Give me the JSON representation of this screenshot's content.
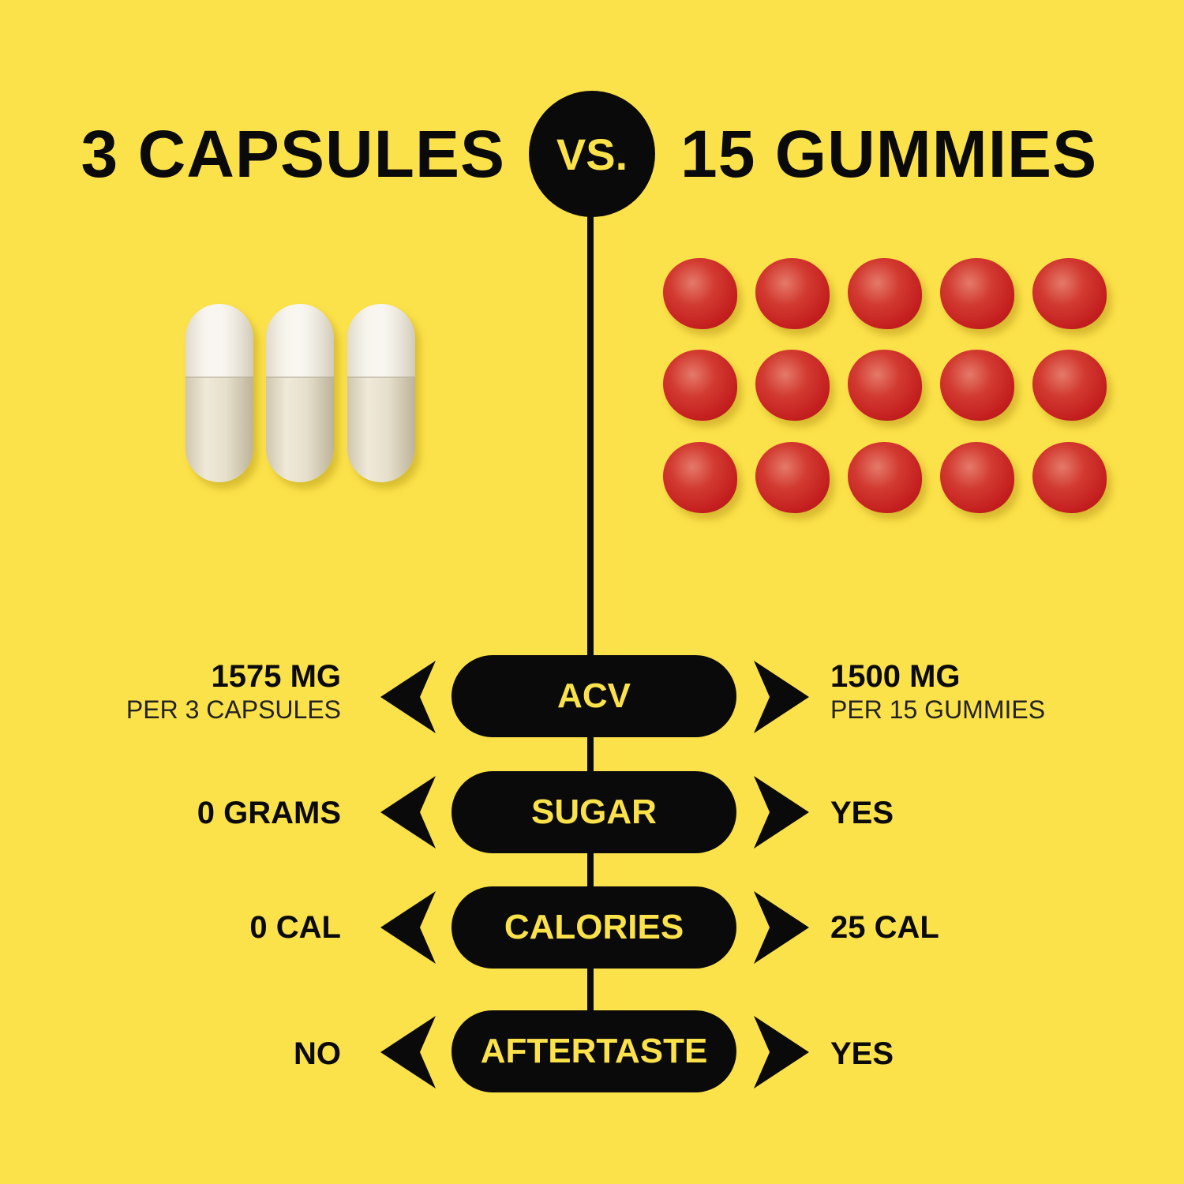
{
  "header": {
    "left": "3 CAPSULES",
    "vs": "VS.",
    "right": "15 GUMMIES"
  },
  "colors": {
    "background": "#fce24a",
    "dark": "#0a0a0a",
    "gummy": "#c41f1f"
  },
  "left_product": {
    "count": 3,
    "item": "capsule"
  },
  "right_product": {
    "count": 15,
    "item": "gummy"
  },
  "rows": [
    {
      "label": "ACV",
      "left": "1575 MG",
      "left_sub": "PER 3 CAPSULES",
      "right": "1500 MG",
      "right_sub": "PER 15 GUMMIES"
    },
    {
      "label": "SUGAR",
      "left": "0 GRAMS",
      "right": "YES"
    },
    {
      "label": "CALORIES",
      "left": "0 CAL",
      "right": "25 CAL"
    },
    {
      "label": "AFTERTASTE",
      "left": "NO",
      "right": "YES"
    }
  ]
}
